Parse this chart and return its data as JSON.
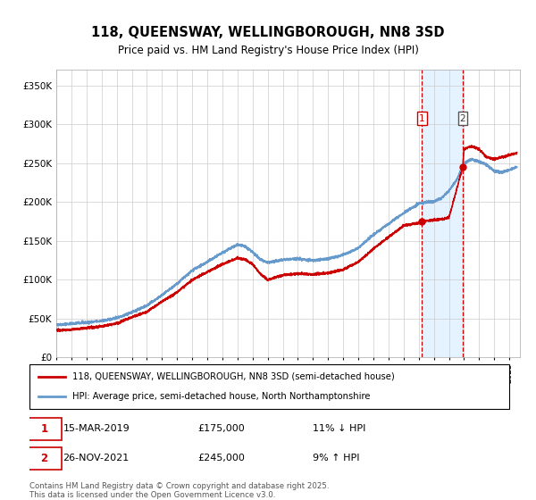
{
  "title_line1": "118, QUEENSWAY, WELLINGBOROUGH, NN8 3SD",
  "title_line2": "Price paid vs. HM Land Registry's House Price Index (HPI)",
  "legend_red": "118, QUEENSWAY, WELLINGBOROUGH, NN8 3SD (semi-detached house)",
  "legend_blue": "HPI: Average price, semi-detached house, North Northamptonshire",
  "transaction1_date": "15-MAR-2019",
  "transaction1_price": 175000,
  "transaction1_note": "11% ↓ HPI",
  "transaction2_date": "26-NOV-2021",
  "transaction2_price": 245000,
  "transaction2_note": "9% ↑ HPI",
  "footnote_line1": "Contains HM Land Registry data © Crown copyright and database right 2025.",
  "footnote_line2": "This data is licensed under the Open Government Licence v3.0.",
  "red_color": "#cc0000",
  "blue_color": "#6699cc",
  "background_color": "#ffffff",
  "grid_color": "#cccccc",
  "shade_color": "#ddeeff",
  "vline_color": "#cc0000",
  "ylim": [
    0,
    370000
  ],
  "yticks": [
    0,
    50000,
    100000,
    150000,
    200000,
    250000,
    300000,
    350000
  ],
  "trans1_year": 2019.21,
  "trans2_year": 2021.91,
  "hpi_key_years": [
    1995,
    1996,
    1997,
    1998,
    1999,
    2000,
    2001,
    2002,
    2003,
    2004,
    2005,
    2006,
    2007,
    2007.5,
    2008,
    2008.5,
    2009,
    2009.5,
    2010,
    2011,
    2012,
    2013,
    2014,
    2015,
    2016,
    2017,
    2018,
    2019,
    2019.5,
    2020,
    2020.5,
    2021,
    2021.5,
    2022,
    2022.5,
    2023,
    2023.5,
    2024,
    2024.5,
    2025.5
  ],
  "hpi_key_vals": [
    42000,
    43500,
    45000,
    47000,
    51000,
    58000,
    67000,
    80000,
    95000,
    112000,
    123000,
    135000,
    145000,
    143000,
    136000,
    126000,
    122000,
    124000,
    126000,
    127000,
    125000,
    127000,
    132000,
    141000,
    158000,
    172000,
    186000,
    198000,
    200000,
    201000,
    205000,
    215000,
    228000,
    250000,
    255000,
    252000,
    248000,
    240000,
    238000,
    245000
  ],
  "price_key_years": [
    1995,
    1996,
    1997,
    1998,
    1999,
    2000,
    2001,
    2002,
    2003,
    2004,
    2005,
    2006,
    2007,
    2007.5,
    2008,
    2008.5,
    2009,
    2009.5,
    2010,
    2011,
    2012,
    2013,
    2014,
    2015,
    2016,
    2017,
    2018,
    2019,
    2019.21,
    2019.5,
    2020,
    2020.5,
    2021,
    2021.91,
    2022,
    2022.5,
    2023,
    2023.5,
    2024,
    2024.5,
    2025.5
  ],
  "price_key_vals": [
    35000,
    36000,
    38000,
    40000,
    44000,
    52000,
    59000,
    72000,
    84000,
    100000,
    110000,
    120000,
    128000,
    126000,
    120000,
    108000,
    100000,
    103000,
    106000,
    108000,
    107000,
    109000,
    113000,
    123000,
    140000,
    155000,
    170000,
    173000,
    175000,
    176000,
    177000,
    178000,
    180000,
    245000,
    268000,
    272000,
    268000,
    258000,
    255000,
    258000,
    263000
  ]
}
